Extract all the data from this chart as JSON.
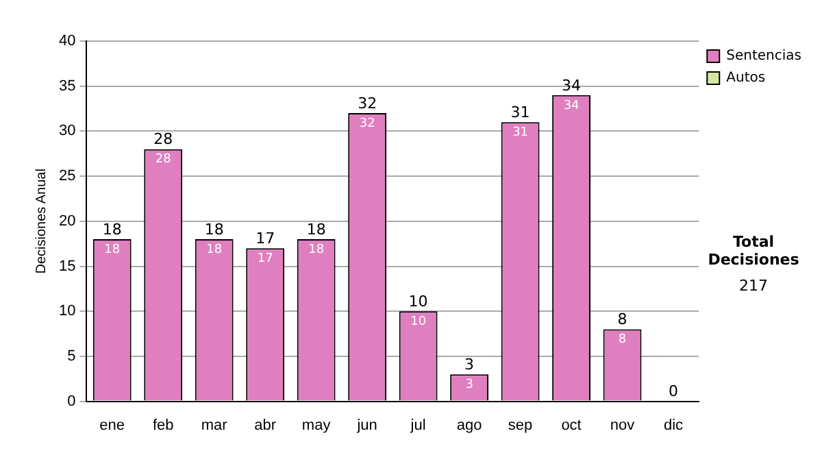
{
  "chart_data": {
    "type": "bar",
    "stacked": true,
    "ylabel": "Decisiones Anual",
    "categories": [
      "ene",
      "feb",
      "mar",
      "abr",
      "may",
      "jun",
      "jul",
      "ago",
      "sep",
      "oct",
      "nov",
      "dic"
    ],
    "series": [
      {
        "name": "Sentencias",
        "color": "#e07fbf",
        "values": [
          18,
          28,
          18,
          17,
          18,
          32,
          10,
          3,
          31,
          34,
          8,
          0
        ],
        "value_labels": [
          "18",
          "28",
          "18",
          "17",
          "18",
          "32",
          "10",
          "3",
          "31",
          "34",
          "8",
          null
        ]
      },
      {
        "name": "Autos",
        "color": "#d4e8a0",
        "values": [
          0,
          0,
          0,
          0,
          0,
          0,
          0,
          0,
          0,
          0,
          0,
          0
        ]
      }
    ],
    "totals": [
      "18",
      "28",
      "18",
      "17",
      "18",
      "32",
      "10",
      "3",
      "31",
      "34",
      "8",
      "0"
    ],
    "ylim": [
      0,
      40
    ],
    "yticks": [
      0,
      5,
      10,
      15,
      20,
      25,
      30,
      35,
      40
    ],
    "grid": "y",
    "legend": "right",
    "annotations": [
      "Total Decisiones",
      "217"
    ]
  }
}
